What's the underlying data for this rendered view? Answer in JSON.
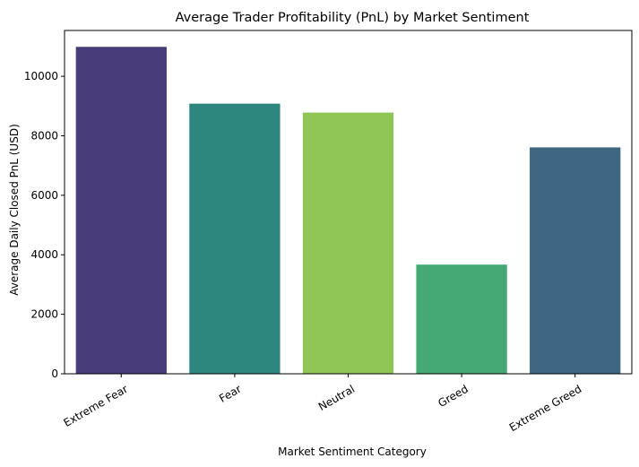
{
  "chart_data": {
    "type": "bar",
    "title": "Average Trader Profitability (PnL) by Market Sentiment",
    "xlabel": "Market Sentiment Category",
    "ylabel": "Average Daily Closed PnL (USD)",
    "categories": [
      "Extreme Fear",
      "Fear",
      "Neutral",
      "Greed",
      "Extreme Greed"
    ],
    "values": [
      10990,
      9080,
      8780,
      3670,
      7610
    ],
    "colors": [
      "#483d7a",
      "#2e877e",
      "#8fc555",
      "#45a975",
      "#3e6783"
    ],
    "ylim": [
      0,
      11540
    ],
    "yticks": [
      0,
      2000,
      4000,
      6000,
      8000,
      10000
    ],
    "grid": false,
    "legend": "none"
  }
}
